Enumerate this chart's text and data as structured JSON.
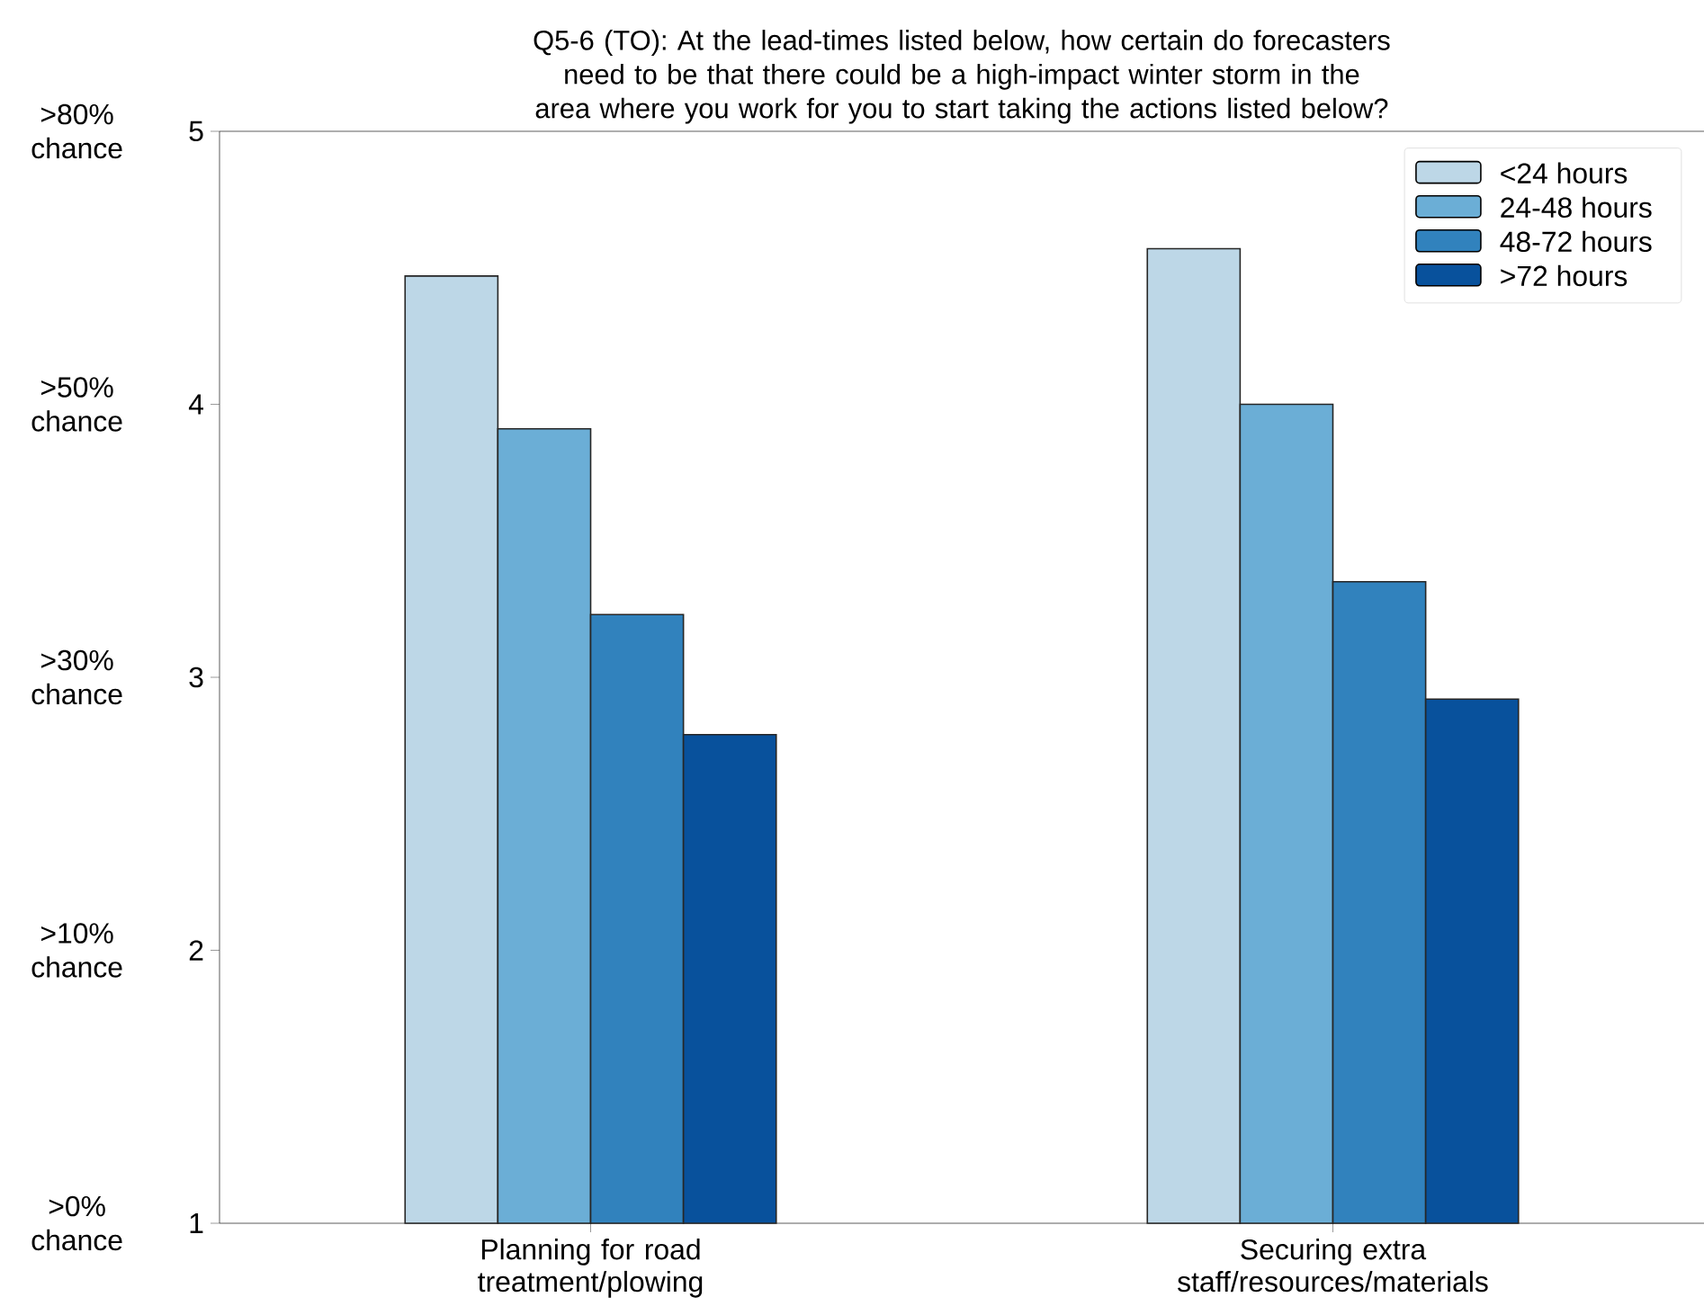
{
  "chart_data": {
    "type": "bar",
    "title": "Q5-6 (TO): At the lead-times listed below, how certain do forecasters need to be that there could be a high-impact winter storm in the area where you work for you to start taking the actions listed below?",
    "categories": [
      "Planning for road treatment/plowing",
      "Securing extra staff/resources/materials"
    ],
    "series": [
      {
        "name": "<24 hours",
        "color": "#bdd7e7",
        "values": [
          4.47,
          4.57
        ]
      },
      {
        "name": "24-48 hours",
        "color": "#6baed6",
        "values": [
          3.91,
          4.0
        ]
      },
      {
        "name": "48-72 hours",
        "color": "#3182bd",
        "values": [
          3.23,
          3.35
        ]
      },
      {
        "name": ">72 hours",
        "color": "#08519c",
        "values": [
          2.79,
          2.92
        ]
      }
    ],
    "ylim": [
      1,
      5
    ],
    "yticks": [
      1,
      2,
      3,
      4,
      5
    ],
    "legend": "top right",
    "annotations": [
      ">0% chance",
      ">10% chance",
      ">30% chance",
      ">50% chance",
      ">80% chance"
    ]
  }
}
